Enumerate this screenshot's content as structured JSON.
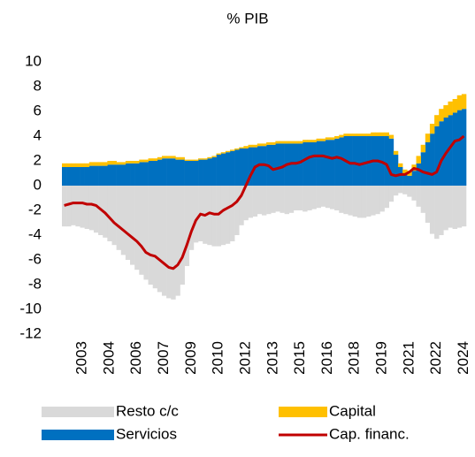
{
  "chart_data": {
    "type": "bar",
    "title": "% PIB",
    "categories": [
      null,
      null,
      null,
      null,
      "2003",
      null,
      null,
      null,
      null,
      null,
      "2004",
      null,
      null,
      null,
      null,
      null,
      "2006",
      null,
      null,
      null,
      null,
      null,
      "2007",
      null,
      null,
      null,
      null,
      null,
      "2009",
      null,
      null,
      null,
      null,
      null,
      "2010",
      null,
      null,
      null,
      null,
      null,
      "2012",
      null,
      null,
      null,
      null,
      null,
      "2013",
      null,
      null,
      null,
      null,
      null,
      "2015",
      null,
      null,
      null,
      null,
      null,
      "2016",
      null,
      null,
      null,
      null,
      null,
      "2018",
      null,
      null,
      null,
      null,
      null,
      "2019",
      null,
      null,
      null,
      null,
      null,
      "2021",
      null,
      null,
      null,
      null,
      null,
      "2022",
      null,
      null,
      null,
      null,
      null,
      "2024"
    ],
    "ylim": [
      -12,
      10
    ],
    "yticks": [
      -12,
      -10,
      -8,
      -6,
      -4,
      -2,
      0,
      2,
      4,
      6,
      8,
      10
    ],
    "series": [
      {
        "name": "Resto c/c",
        "type": "bar",
        "color": "#d9d9d9",
        "values": [
          -3.3,
          -3.3,
          -3.2,
          -3.3,
          -3.4,
          -3.5,
          -3.6,
          -3.8,
          -4.0,
          -4.2,
          -4.5,
          -4.8,
          -5.2,
          -5.6,
          -6.0,
          -6.4,
          -6.8,
          -7.2,
          -7.6,
          -8.0,
          -8.3,
          -8.6,
          -8.9,
          -9.1,
          -9.2,
          -8.9,
          -8.0,
          -6.5,
          -5.2,
          -4.6,
          -4.5,
          -4.7,
          -4.8,
          -4.9,
          -4.9,
          -4.8,
          -4.7,
          -4.5,
          -4.0,
          -3.2,
          -2.8,
          -2.6,
          -2.5,
          -2.3,
          -2.4,
          -2.3,
          -2.2,
          -2.1,
          -2.2,
          -2.3,
          -2.2,
          -2.0,
          -2.0,
          -2.1,
          -2.0,
          -1.9,
          -1.8,
          -1.7,
          -1.8,
          -1.9,
          -2.0,
          -2.2,
          -2.3,
          -2.4,
          -2.5,
          -2.6,
          -2.6,
          -2.5,
          -2.4,
          -2.3,
          -2.1,
          -1.8,
          -1.3,
          -0.8,
          -0.6,
          -0.7,
          -0.9,
          -1.2,
          -1.7,
          -2.2,
          -3.0,
          -3.9,
          -4.3,
          -4.0,
          -3.6,
          -3.4,
          -3.5,
          -3.4,
          -3.3
        ]
      },
      {
        "name": "Servicios",
        "type": "bar",
        "color": "#0070c0",
        "values": [
          1.5,
          1.5,
          1.5,
          1.5,
          1.5,
          1.5,
          1.6,
          1.6,
          1.6,
          1.6,
          1.7,
          1.7,
          1.7,
          1.7,
          1.8,
          1.8,
          1.8,
          1.9,
          1.9,
          2.0,
          2.0,
          2.1,
          2.2,
          2.2,
          2.2,
          2.1,
          2.1,
          2.0,
          2.0,
          2.0,
          2.1,
          2.1,
          2.2,
          2.3,
          2.5,
          2.6,
          2.7,
          2.8,
          2.9,
          3.0,
          3.0,
          3.1,
          3.1,
          3.2,
          3.2,
          3.3,
          3.3,
          3.4,
          3.4,
          3.4,
          3.4,
          3.4,
          3.4,
          3.5,
          3.5,
          3.5,
          3.6,
          3.6,
          3.7,
          3.7,
          3.8,
          3.9,
          4.0,
          4.0,
          4.0,
          4.0,
          4.0,
          4.0,
          4.0,
          4.0,
          4.0,
          4.0,
          3.8,
          2.5,
          1.5,
          1.0,
          0.8,
          1.2,
          1.8,
          2.7,
          3.5,
          4.2,
          4.8,
          5.2,
          5.5,
          5.7,
          5.9,
          6.1,
          6.2
        ]
      },
      {
        "name": "Capital",
        "type": "bar",
        "color": "#ffc000",
        "values": [
          0.3,
          0.3,
          0.3,
          0.3,
          0.3,
          0.3,
          0.3,
          0.3,
          0.3,
          0.3,
          0.3,
          0.3,
          0.2,
          0.2,
          0.2,
          0.2,
          0.2,
          0.2,
          0.2,
          0.2,
          0.2,
          0.2,
          0.2,
          0.2,
          0.2,
          0.2,
          0.2,
          0.1,
          0.1,
          0.1,
          0.1,
          0.1,
          0.1,
          0.1,
          0.1,
          0.1,
          0.1,
          0.1,
          0.1,
          0.1,
          0.2,
          0.2,
          0.2,
          0.2,
          0.2,
          0.2,
          0.2,
          0.2,
          0.2,
          0.2,
          0.2,
          0.2,
          0.2,
          0.2,
          0.2,
          0.2,
          0.2,
          0.2,
          0.2,
          0.2,
          0.2,
          0.2,
          0.2,
          0.2,
          0.2,
          0.2,
          0.2,
          0.2,
          0.3,
          0.3,
          0.3,
          0.3,
          0.3,
          0.3,
          0.3,
          0.3,
          0.4,
          0.5,
          0.6,
          0.6,
          0.7,
          0.8,
          0.9,
          1.0,
          1.0,
          1.1,
          1.1,
          1.2,
          1.2
        ]
      },
      {
        "name": "Cap. financ.",
        "type": "line",
        "color": "#c00000",
        "values": [
          -1.6,
          -1.5,
          -1.4,
          -1.4,
          -1.4,
          -1.5,
          -1.5,
          -1.6,
          -1.9,
          -2.2,
          -2.6,
          -3.0,
          -3.3,
          -3.6,
          -3.9,
          -4.2,
          -4.5,
          -4.9,
          -5.4,
          -5.6,
          -5.7,
          -6.0,
          -6.3,
          -6.6,
          -6.7,
          -6.4,
          -5.8,
          -4.8,
          -3.7,
          -2.8,
          -2.3,
          -2.4,
          -2.2,
          -2.3,
          -2.3,
          -2.0,
          -1.8,
          -1.6,
          -1.3,
          -0.8,
          0.0,
          0.8,
          1.5,
          1.7,
          1.7,
          1.6,
          1.3,
          1.4,
          1.5,
          1.7,
          1.8,
          1.8,
          1.9,
          2.1,
          2.3,
          2.4,
          2.4,
          2.4,
          2.3,
          2.2,
          2.3,
          2.2,
          2.0,
          1.8,
          1.8,
          1.7,
          1.8,
          1.9,
          2.0,
          2.0,
          1.9,
          1.7,
          0.9,
          0.8,
          0.9,
          0.9,
          1.1,
          1.4,
          1.3,
          1.1,
          1.0,
          0.9,
          1.1,
          2.0,
          2.6,
          3.1,
          3.6,
          3.7,
          4.0
        ]
      }
    ]
  }
}
